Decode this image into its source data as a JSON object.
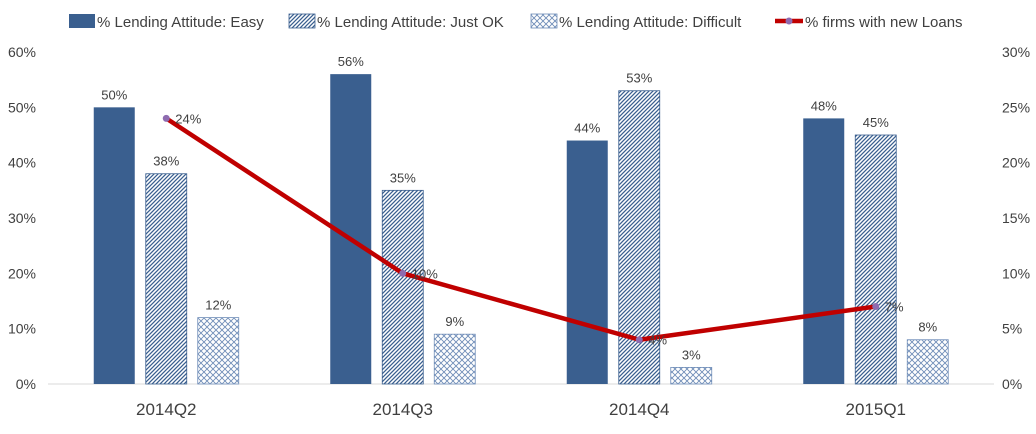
{
  "chart_data": {
    "type": "bar",
    "categories": [
      "2014Q2",
      "2014Q3",
      "2014Q4",
      "2015Q1"
    ],
    "series": [
      {
        "name": "% Lending Attitude: Easy",
        "type": "bar",
        "axis": "left",
        "pattern": "solid",
        "color": "#3A5F8F",
        "values": [
          50,
          56,
          44,
          48
        ],
        "labels": [
          "50%",
          "56%",
          "44%",
          "48%"
        ]
      },
      {
        "name": "% Lending Attitude: Just OK",
        "type": "bar",
        "axis": "left",
        "pattern": "diagonal-hatch",
        "color": "#3A5F8F",
        "values": [
          38,
          35,
          53,
          45
        ],
        "labels": [
          "38%",
          "35%",
          "53%",
          "45%"
        ]
      },
      {
        "name": "% Lending Attitude: Difficult",
        "type": "bar",
        "axis": "left",
        "pattern": "cross-hatch",
        "color": "#6F8DB8",
        "values": [
          12,
          9,
          3,
          8
        ],
        "labels": [
          "12%",
          "9%",
          "3%",
          "8%"
        ]
      },
      {
        "name": "% firms with new Loans",
        "type": "line",
        "axis": "right",
        "color": "#C00000",
        "marker_color": "#8E6BB0",
        "values": [
          24,
          10,
          4,
          7
        ],
        "labels": [
          "24%",
          "10%",
          "4%",
          "7%"
        ]
      }
    ],
    "y_left": {
      "min": 0,
      "max": 60,
      "step": 10,
      "ticks": [
        "0%",
        "10%",
        "20%",
        "30%",
        "40%",
        "50%",
        "60%"
      ]
    },
    "y_right": {
      "min": 0,
      "max": 30,
      "step": 5,
      "ticks": [
        "0%",
        "5%",
        "10%",
        "15%",
        "20%",
        "25%",
        "30%"
      ]
    },
    "legend_position": "top",
    "grid": false
  }
}
